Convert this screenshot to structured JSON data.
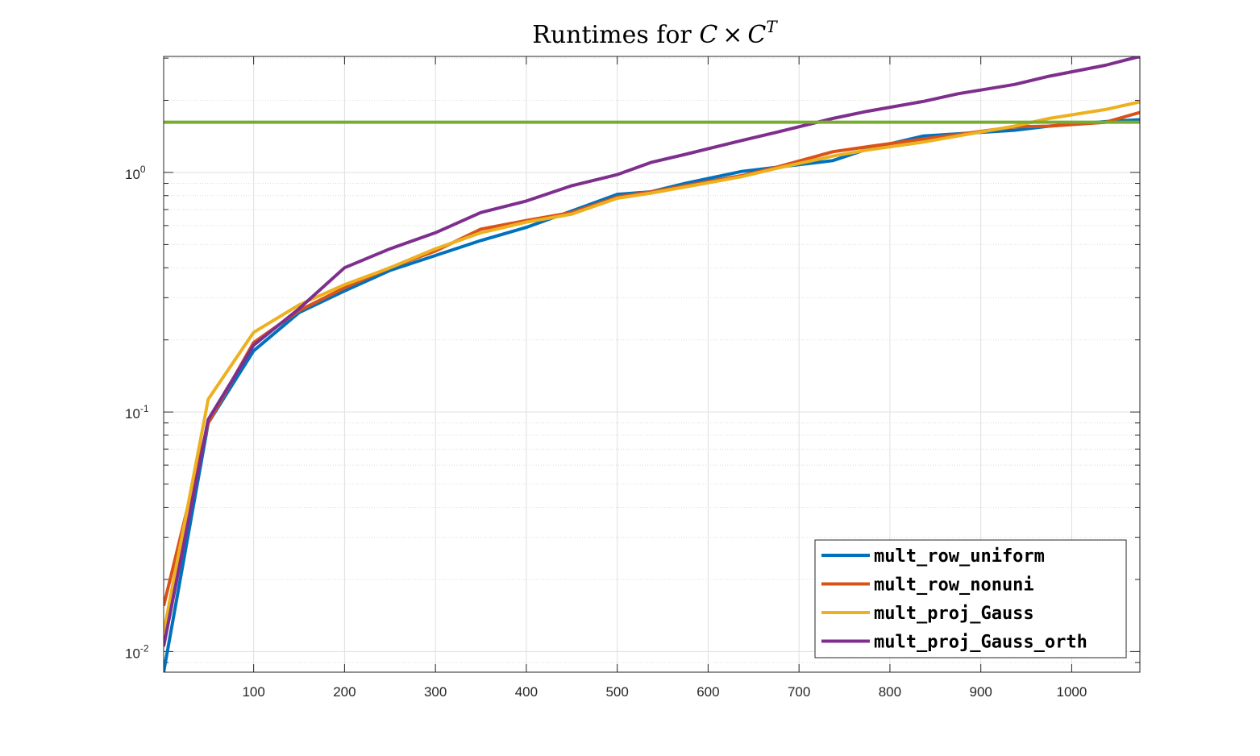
{
  "chart_data": {
    "type": "line",
    "title": {
      "prefix": "Runtimes for ",
      "c1": "C",
      "times": "×",
      "c2": "C",
      "sup": "T"
    },
    "xlabel": "",
    "ylabel": "",
    "xscale": "linear",
    "yscale": "log",
    "xlim": [
      1,
      1075
    ],
    "ylim": [
      0.0082,
      3.05
    ],
    "grid": true,
    "minor_grid": true,
    "xticks": [
      100,
      200,
      300,
      400,
      500,
      600,
      700,
      800,
      900,
      1000
    ],
    "xtick_labels": [
      "100",
      "200",
      "300",
      "400",
      "500",
      "600",
      "700",
      "800",
      "900",
      "1000"
    ],
    "yticks": [
      {
        "value": 0.01,
        "base": "10",
        "exp": "-2"
      },
      {
        "value": 0.1,
        "base": "10",
        "exp": "-1"
      },
      {
        "value": 1,
        "base": "10",
        "exp": "0"
      }
    ],
    "legend_position": "bottom-right",
    "series": [
      {
        "name": "mult_row_uniform",
        "color": "#0072BD",
        "x": [
          1,
          50,
          100,
          150,
          200,
          250,
          300,
          350,
          400,
          450,
          500,
          537,
          575,
          637,
          675,
          737,
          775,
          837,
          875,
          937,
          975,
          1037,
          1075
        ],
        "y": [
          0.0082,
          0.09,
          0.18,
          0.26,
          0.32,
          0.39,
          0.45,
          0.52,
          0.59,
          0.69,
          0.81,
          0.83,
          0.9,
          1.01,
          1.05,
          1.12,
          1.25,
          1.42,
          1.45,
          1.5,
          1.56,
          1.63,
          1.66
        ]
      },
      {
        "name": "mult_row_nonuni",
        "color": "#D95319",
        "x": [
          1,
          50,
          100,
          150,
          200,
          250,
          300,
          350,
          400,
          450,
          500,
          537,
          575,
          637,
          675,
          737,
          775,
          837,
          875,
          937,
          975,
          1037,
          1075
        ],
        "y": [
          0.0155,
          0.09,
          0.195,
          0.265,
          0.33,
          0.4,
          0.47,
          0.58,
          0.63,
          0.68,
          0.79,
          0.83,
          0.88,
          0.97,
          1.05,
          1.22,
          1.28,
          1.38,
          1.44,
          1.55,
          1.56,
          1.62,
          1.78
        ]
      },
      {
        "name": "mult_proj_Gauss",
        "color": "#EDB120",
        "x": [
          1,
          50,
          100,
          150,
          200,
          250,
          300,
          350,
          400,
          450,
          500,
          537,
          575,
          637,
          675,
          737,
          775,
          837,
          875,
          937,
          975,
          1037,
          1075
        ],
        "y": [
          0.012,
          0.113,
          0.215,
          0.28,
          0.34,
          0.4,
          0.48,
          0.56,
          0.62,
          0.67,
          0.78,
          0.82,
          0.87,
          0.96,
          1.04,
          1.17,
          1.24,
          1.34,
          1.42,
          1.56,
          1.68,
          1.83,
          1.97
        ]
      },
      {
        "name": "mult_proj_Gauss_orth",
        "color": "#7E2F8E",
        "x": [
          1,
          50,
          100,
          150,
          200,
          250,
          300,
          350,
          400,
          450,
          500,
          537,
          575,
          637,
          675,
          737,
          775,
          837,
          875,
          937,
          975,
          1037,
          1075
        ],
        "y": [
          0.0105,
          0.093,
          0.19,
          0.27,
          0.4,
          0.48,
          0.56,
          0.68,
          0.76,
          0.88,
          0.98,
          1.1,
          1.19,
          1.36,
          1.47,
          1.68,
          1.8,
          1.98,
          2.13,
          2.33,
          2.52,
          2.8,
          3.05
        ]
      }
    ],
    "reference_line": {
      "color": "#77AC30",
      "y": 1.62
    }
  }
}
